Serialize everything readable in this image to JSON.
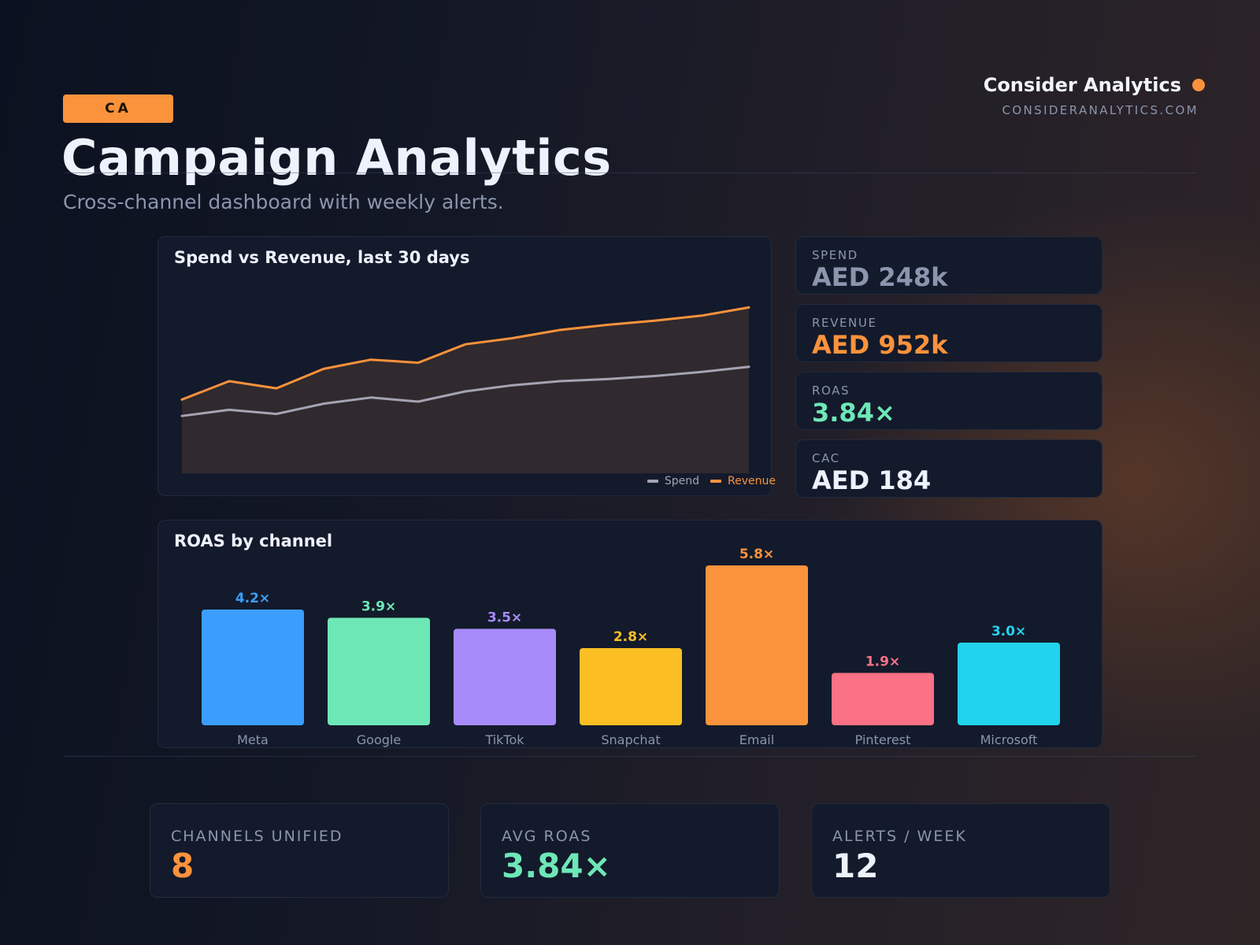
{
  "header": {
    "badge": "CA",
    "title": "Campaign Analytics",
    "subtitle": "Cross-channel dashboard with weekly alerts.",
    "brand_name": "Consider Analytics",
    "brand_url": "CONSIDERANALYTICS.COM"
  },
  "colors": {
    "accent": "#fb923c",
    "spend": "#a5a3b3",
    "revenue": "#fb923c",
    "roas": "#6ee7b7",
    "muted": "#8b95ad",
    "text": "#eef2fc"
  },
  "kpis": [
    {
      "label": "SPEND",
      "value": "AED 248k",
      "color": "#8b95ad"
    },
    {
      "label": "REVENUE",
      "value": "AED 952k",
      "color": "#fb923c"
    },
    {
      "label": "ROAS",
      "value": "3.84×",
      "color": "#6ee7b7"
    },
    {
      "label": "CAC",
      "value": "AED 184",
      "color": "#eef2fc"
    }
  ],
  "stats": [
    {
      "label": "CHANNELS UNIFIED",
      "value": "8",
      "color": "#fb923c"
    },
    {
      "label": "AVG ROAS",
      "value": "3.84×",
      "color": "#6ee7b7"
    },
    {
      "label": "ALERTS / WEEK",
      "value": "12",
      "color": "#eef2fc"
    }
  ],
  "chart_data": [
    {
      "type": "area",
      "title": "Spend vs Revenue, last 30 days",
      "x": [
        1,
        2,
        3,
        4,
        5,
        6,
        7,
        8,
        9,
        10,
        11,
        12,
        13
      ],
      "series": [
        {
          "name": "Spend",
          "color": "#a5a3b3",
          "values": [
            28,
            31,
            29,
            34,
            37,
            35,
            40,
            43,
            45,
            46,
            47.5,
            49.5,
            52
          ]
        },
        {
          "name": "Revenue",
          "color": "#fb923c",
          "values": [
            36,
            45,
            41.5,
            51,
            55.5,
            54,
            63,
            66,
            70,
            72.5,
            74.5,
            77,
            81
          ]
        }
      ],
      "ylim": [
        0,
        100
      ],
      "grid": false,
      "legend": "bottom-right"
    },
    {
      "type": "bar",
      "title": "ROAS by channel",
      "categories": [
        "Meta",
        "Google",
        "TikTok",
        "Snapchat",
        "Email",
        "Pinterest",
        "Microsoft"
      ],
      "values": [
        4.2,
        3.9,
        3.5,
        2.8,
        5.8,
        1.9,
        3.0
      ],
      "value_labels": [
        "4.2×",
        "3.9×",
        "3.5×",
        "2.8×",
        "5.8×",
        "1.9×",
        "3.0×"
      ],
      "colors": [
        "#3b9eff",
        "#6ee7b7",
        "#a78bfa",
        "#fbbf24",
        "#fb923c",
        "#fb7185",
        "#22d3ee"
      ],
      "ylim": [
        0,
        6.0
      ]
    }
  ]
}
